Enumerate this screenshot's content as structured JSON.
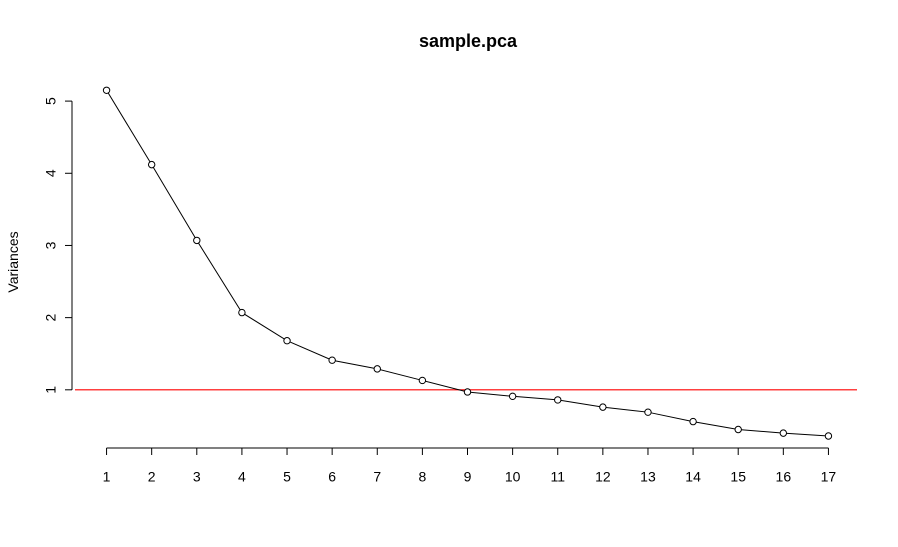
{
  "chart_data": {
    "type": "line",
    "title": "sample.pca",
    "xlabel": "",
    "ylabel": "Variances",
    "x": [
      1,
      2,
      3,
      4,
      5,
      6,
      7,
      8,
      9,
      10,
      11,
      12,
      13,
      14,
      15,
      16,
      17
    ],
    "x_ticks": [
      "1",
      "2",
      "3",
      "4",
      "5",
      "6",
      "7",
      "8",
      "9",
      "10",
      "11",
      "12",
      "13",
      "14",
      "15",
      "16",
      "17"
    ],
    "y_ticks": [
      "1",
      "2",
      "3",
      "4",
      "5"
    ],
    "series": [
      {
        "values": [
          5.15,
          4.12,
          3.07,
          2.07,
          1.68,
          1.41,
          1.29,
          1.13,
          0.97,
          0.91,
          0.86,
          0.76,
          0.69,
          0.56,
          0.45,
          0.4,
          0.36
        ],
        "color": "#000000",
        "marker": "open-circle"
      }
    ],
    "reference_line": {
      "y": 1,
      "color": "#ff0000"
    },
    "xlim": [
      0.5,
      17.5
    ],
    "ylim": [
      0.18,
      5.32
    ],
    "grid": false,
    "legend": "none"
  }
}
